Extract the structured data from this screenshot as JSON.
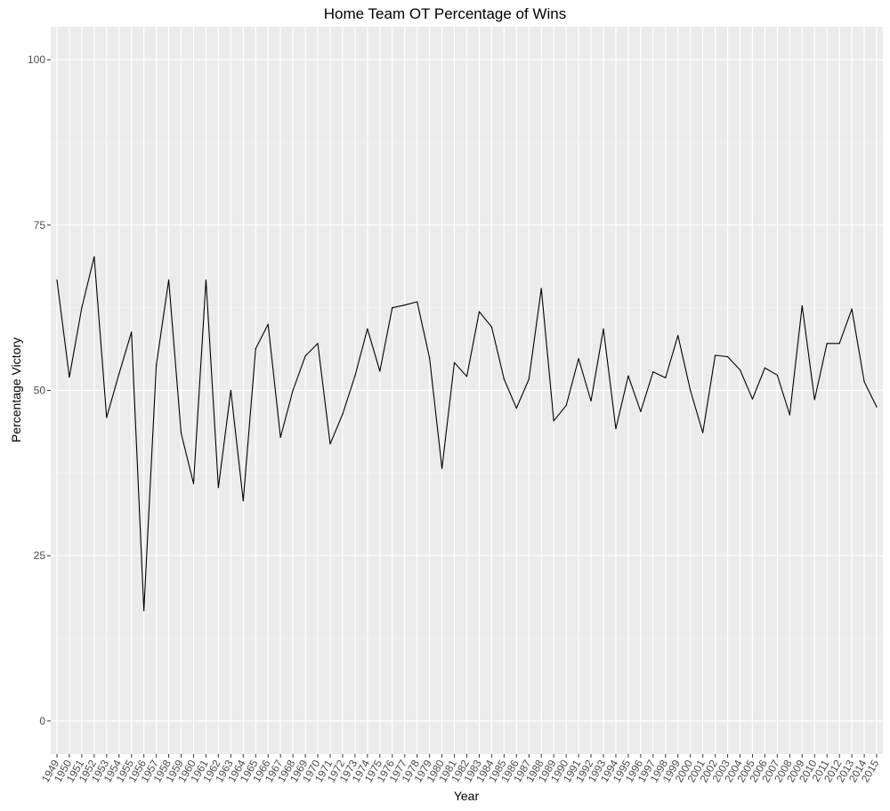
{
  "chart_data": {
    "type": "line",
    "title": "Home Team OT Percentage of Wins",
    "xlabel": "Year",
    "ylabel": "Percentage Victory",
    "ylim": [
      -5,
      105
    ],
    "y_ticks": [
      0,
      25,
      50,
      75,
      100
    ],
    "grid": true,
    "categories": [
      "1949",
      "1950",
      "1951",
      "1952",
      "1953",
      "1954",
      "1955",
      "1956",
      "1957",
      "1958",
      "1959",
      "1960",
      "1961",
      "1962",
      "1963",
      "1964",
      "1965",
      "1966",
      "1967",
      "1968",
      "1969",
      "1970",
      "1971",
      "1972",
      "1973",
      "1974",
      "1975",
      "1976",
      "1977",
      "1978",
      "1979",
      "1980",
      "1981",
      "1982",
      "1983",
      "1984",
      "1985",
      "1986",
      "1987",
      "1988",
      "1989",
      "1990",
      "1991",
      "1992",
      "1993",
      "1994",
      "1995",
      "1996",
      "1997",
      "1998",
      "1999",
      "2000",
      "2001",
      "2002",
      "2003",
      "2004",
      "2005",
      "2006",
      "2007",
      "2008",
      "2009",
      "2010",
      "2011",
      "2012",
      "2013",
      "2014",
      "2015"
    ],
    "series": [
      {
        "values": [
          66.7,
          52.0,
          62.5,
          70.2,
          45.9,
          52.5,
          58.8,
          16.7,
          53.8,
          66.7,
          43.5,
          35.9,
          66.7,
          35.3,
          50.0,
          33.3,
          56.3,
          60.0,
          42.9,
          50.0,
          55.2,
          57.1,
          41.9,
          46.4,
          52.2,
          59.3,
          52.9,
          62.5,
          62.9,
          63.4,
          54.9,
          38.2,
          54.2,
          52.1,
          61.9,
          59.6,
          51.7,
          47.3,
          51.7,
          65.4,
          45.4,
          47.7,
          54.8,
          48.4,
          59.3,
          44.2,
          52.2,
          46.8,
          52.8,
          51.9,
          58.3,
          50.0,
          43.6,
          55.3,
          55.1,
          53.1,
          48.7,
          53.4,
          52.3,
          46.3,
          62.8,
          48.6,
          57.1,
          57.1,
          62.3,
          51.3,
          47.5
        ]
      }
    ],
    "colors": {
      "panel_background": "#ebebeb",
      "grid_major": "#ffffff",
      "grid_minor": "#f5f5f5",
      "line": "#000000",
      "tick_text": "#4d4d4d",
      "tick_mark": "#333333"
    }
  }
}
